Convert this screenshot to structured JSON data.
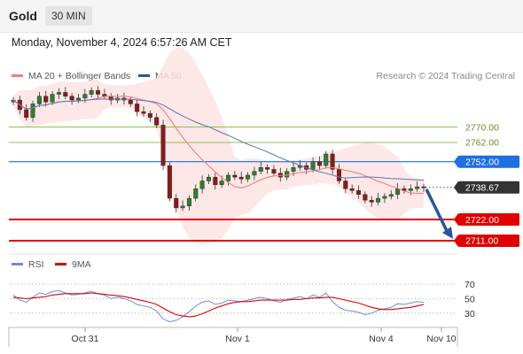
{
  "header": {
    "instrument": "Gold",
    "timeframe": "30 MIN"
  },
  "datetime": "Monday, November 4, 2024 6:57:26 AM CET",
  "legend": {
    "ma20_label": "MA 20 + Bollinger Bands",
    "ma20_color": "#f08080",
    "ma50_label": "MA 50",
    "ma50_color": "#2a5599"
  },
  "credit": "Research © 2024 Trading Central",
  "rsi_legend": {
    "rsi_label": "RSI",
    "rsi_color": "#6a8fd8",
    "ma_label": "9MA",
    "ma_color": "#e00000"
  },
  "chart_data": [
    {
      "type": "candlestick",
      "ylim": [
        2705,
        2790
      ],
      "x_ticks": [
        "Oct 31",
        "Nov 1",
        "Nov 4",
        "Nov 10"
      ],
      "levels": [
        {
          "label": "2770.00",
          "value": 2770.0,
          "style": "thin",
          "color": "#8bc34a"
        },
        {
          "label": "2762.00",
          "value": 2762.0,
          "style": "thin",
          "color": "#8bc34a"
        },
        {
          "label": "2752.00",
          "value": 2752.0,
          "style": "resistance",
          "color": "#1e6fe0"
        },
        {
          "label": "2738.67",
          "value": 2738.67,
          "style": "current",
          "color": "#333333"
        },
        {
          "label": "2722.00",
          "value": 2722.0,
          "style": "support",
          "color": "#e00000"
        },
        {
          "label": "2711.00",
          "value": 2711.0,
          "style": "support",
          "color": "#e00000"
        }
      ],
      "series": [
        {
          "name": "MA 20 + Bollinger Bands",
          "kind": "ma20"
        },
        {
          "name": "MA 50",
          "kind": "ma50"
        }
      ],
      "closes": [
        2784,
        2779,
        2775,
        2782,
        2786,
        2783,
        2787,
        2788,
        2786,
        2784,
        2785,
        2787,
        2789,
        2787,
        2786,
        2784,
        2785,
        2784,
        2782,
        2778,
        2777,
        2775,
        2771,
        2750,
        2733,
        2728,
        2729,
        2733,
        2738,
        2742,
        2744,
        2740,
        2742,
        2745,
        2744,
        2743,
        2745,
        2747,
        2749,
        2748,
        2746,
        2744,
        2747,
        2749,
        2750,
        2748,
        2752,
        2750,
        2756,
        2748,
        2742,
        2738,
        2737,
        2735,
        2732,
        2731,
        2733,
        2734,
        2735,
        2738,
        2737,
        2738,
        2739,
        2738.67
      ],
      "projection": {
        "from": 2738.67,
        "to": 2711.0
      }
    },
    {
      "type": "line",
      "title": "RSI",
      "ylim": [
        20,
        80
      ],
      "y_ticks": [
        70,
        50,
        30
      ],
      "series": [
        {
          "name": "RSI",
          "values": [
            55,
            48,
            45,
            52,
            58,
            56,
            60,
            61,
            58,
            55,
            56,
            58,
            60,
            57,
            55,
            50,
            52,
            50,
            47,
            42,
            40,
            38,
            33,
            22,
            18,
            20,
            25,
            32,
            40,
            45,
            47,
            42,
            44,
            48,
            47,
            46,
            48,
            50,
            52,
            50,
            47,
            45,
            49,
            51,
            53,
            50,
            55,
            52,
            58,
            46,
            38,
            34,
            33,
            31,
            28,
            30,
            34,
            36,
            38,
            43,
            42,
            44,
            46,
            45
          ]
        },
        {
          "name": "9MA",
          "values": [
            52,
            51,
            50,
            51,
            52,
            53,
            55,
            56,
            57,
            57,
            57,
            57,
            58,
            57,
            56,
            55,
            54,
            53,
            51,
            49,
            47,
            45,
            42,
            37,
            32,
            28,
            26,
            25,
            26,
            29,
            33,
            37,
            40,
            43,
            45,
            46,
            46,
            47,
            48,
            48,
            48,
            48,
            48,
            49,
            49,
            50,
            51,
            51,
            52,
            52,
            50,
            48,
            46,
            44,
            41,
            38,
            36,
            35,
            35,
            36,
            37,
            38,
            40,
            42
          ]
        }
      ]
    }
  ]
}
